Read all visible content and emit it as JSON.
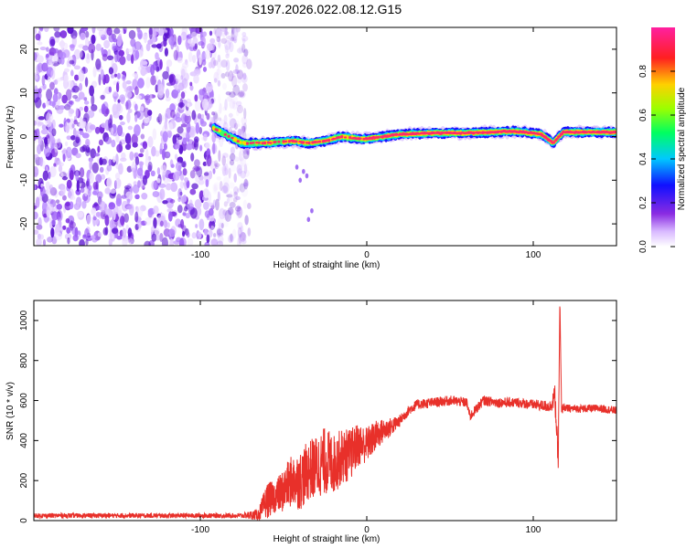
{
  "figure_title": "S197.2026.022.08.12.G15",
  "colors": {
    "snr_line": "#e8302a",
    "spectrum_core": "#ff2a6a",
    "noise": "#7a2ae0",
    "axis": "#000000"
  },
  "chart_data": [
    {
      "type": "heatmap",
      "name": "spectrogram",
      "xlabel": "Height of straight line (km)",
      "ylabel": "Frequency (Hz)",
      "xlim": [
        -200,
        150
      ],
      "ylim": [
        -25,
        25
      ],
      "xticks": [
        -100,
        0,
        100
      ],
      "xtick_labels": [
        "-100",
        "0",
        "100"
      ],
      "yticks": [
        20,
        10,
        0,
        -10,
        -20
      ],
      "ytick_labels": [
        "20",
        "10",
        "0",
        "-10",
        "-20"
      ],
      "grid": false,
      "noise_region_x": [
        -200,
        -75
      ],
      "signal_track": {
        "x": [
          -92,
          -85,
          -75,
          -60,
          -45,
          -35,
          -25,
          -15,
          -5,
          0,
          10,
          20,
          40,
          60,
          75,
          85,
          95,
          105,
          112,
          118,
          130,
          150
        ],
        "frequency": [
          2.0,
          0.5,
          -1.5,
          -1.5,
          -1.0,
          -1.5,
          -1.0,
          0.0,
          -0.5,
          -0.5,
          0.0,
          0.5,
          0.8,
          0.8,
          1.0,
          1.2,
          1.0,
          0.5,
          -1.5,
          1.0,
          1.0,
          1.0
        ]
      },
      "colorbar": {
        "label": "Normalized spectral amplitude",
        "range": [
          0,
          1
        ],
        "ticks": [
          0.0,
          0.2,
          0.4,
          0.6,
          0.8
        ],
        "tick_labels": [
          "0.0",
          "0.2",
          "0.4",
          "0.6",
          "0.8"
        ],
        "colormap": "rainbow (purple → blue → cyan → green → yellow → red → pink)"
      }
    },
    {
      "type": "line",
      "name": "snr",
      "xlabel": "Height of straight line (km)",
      "ylabel": "SNR (10 * v/v)",
      "xlim": [
        -200,
        150
      ],
      "ylim": [
        0,
        1100
      ],
      "xticks": [
        -100,
        0,
        100
      ],
      "xtick_labels": [
        "-100",
        "0",
        "100"
      ],
      "yticks": [
        0,
        200,
        400,
        600,
        800,
        1000
      ],
      "ytick_labels": [
        "0",
        "200",
        "400",
        "600",
        "800",
        "1000"
      ],
      "grid": false,
      "series": [
        {
          "name": "SNR",
          "x": [
            -200,
            -150,
            -100,
            -75,
            -65,
            -60,
            -55,
            -50,
            -45,
            -40,
            -35,
            -30,
            -25,
            -20,
            -15,
            -10,
            -5,
            0,
            5,
            10,
            15,
            20,
            25,
            30,
            40,
            50,
            60,
            62,
            70,
            80,
            90,
            100,
            110,
            113,
            115,
            116,
            117,
            118,
            120,
            130,
            140,
            150
          ],
          "y": [
            25,
            25,
            25,
            25,
            30,
            100,
            120,
            150,
            200,
            200,
            250,
            270,
            300,
            280,
            320,
            330,
            380,
            380,
            420,
            450,
            470,
            500,
            550,
            580,
            590,
            600,
            590,
            520,
            600,
            590,
            590,
            580,
            570,
            620,
            300,
            1100,
            540,
            570,
            560,
            560,
            560,
            550
          ],
          "noise_amplitude": [
            12,
            12,
            12,
            12,
            30,
            90,
            80,
            110,
            130,
            150,
            150,
            160,
            170,
            150,
            140,
            130,
            110,
            90,
            80,
            60,
            45,
            30,
            25,
            25,
            25,
            25,
            25,
            25,
            25,
            25,
            25,
            25,
            30,
            60,
            60,
            0,
            30,
            20,
            20,
            20,
            20,
            20
          ]
        }
      ]
    }
  ]
}
